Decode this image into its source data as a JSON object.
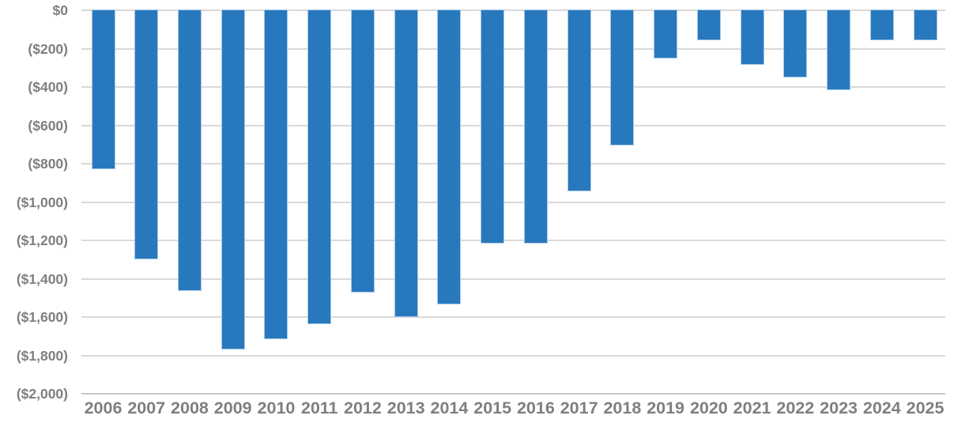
{
  "chart_data": {
    "type": "bar",
    "title": "",
    "xlabel": "",
    "ylabel": "",
    "categories": [
      "2006",
      "2007",
      "2008",
      "2009",
      "2010",
      "2011",
      "2012",
      "2013",
      "2014",
      "2015",
      "2016",
      "2017",
      "2018",
      "2019",
      "2020",
      "2021",
      "2022",
      "2023",
      "2024",
      "2025"
    ],
    "values": [
      -835,
      -1305,
      -1470,
      -1775,
      -1720,
      -1640,
      -1475,
      -1605,
      -1540,
      -1220,
      -1220,
      -950,
      -710,
      -255,
      -160,
      -290,
      -355,
      -420,
      -160,
      -160
    ],
    "y_tick_labels": [
      "$0",
      "($200)",
      "($400)",
      "($600)",
      "($800)",
      "($1,000)",
      "($1,200)",
      "($1,400)",
      "($1,600)",
      "($1,800)",
      "($2,000)"
    ],
    "y_tick_values": [
      0,
      -200,
      -400,
      -600,
      -800,
      -1000,
      -1200,
      -1400,
      -1600,
      -1800,
      -2000
    ],
    "ylim": [
      -2000,
      0
    ],
    "grid": "horizontal",
    "legend": "none",
    "bar_color": "#2878be",
    "gridline_color": "#d9d9d9",
    "axis_label_color": "#7f7f7f"
  }
}
